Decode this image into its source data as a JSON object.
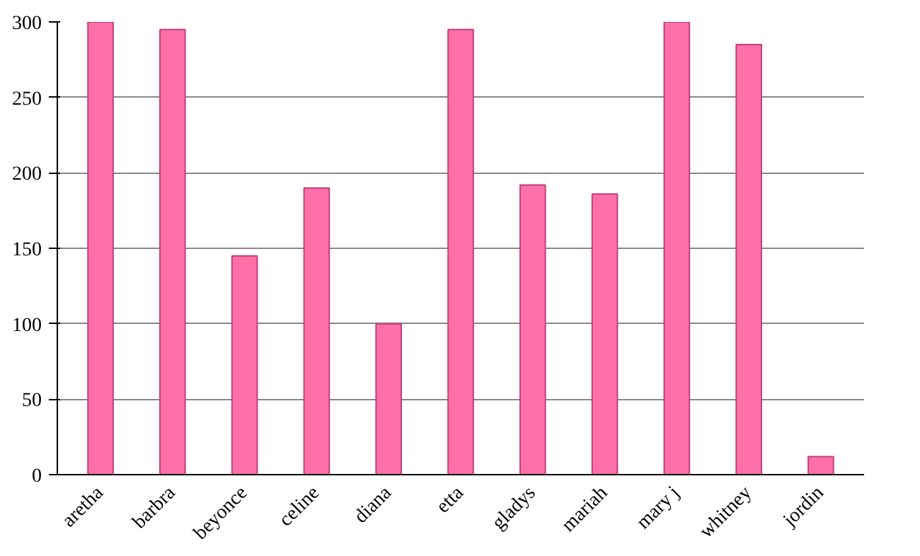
{
  "chart_data": {
    "type": "bar",
    "categories": [
      "aretha",
      "barbra",
      "beyonce",
      "celine",
      "diana",
      "etta",
      "gladys",
      "mariah",
      "mary j",
      "whitney",
      "jordin"
    ],
    "values": [
      300,
      295,
      145,
      190,
      100,
      295,
      192,
      186,
      300,
      285,
      12
    ],
    "color": "#ff6fa8",
    "ylim": [
      0,
      300
    ],
    "yticks": [
      0,
      50,
      100,
      150,
      200,
      250,
      300
    ],
    "grid": "y"
  }
}
